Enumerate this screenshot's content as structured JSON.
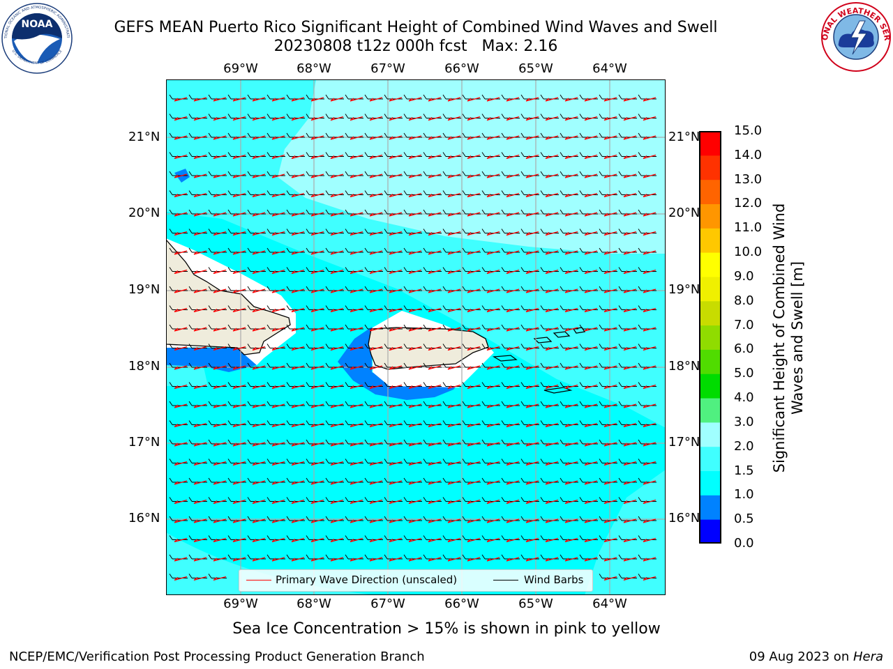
{
  "header": {
    "title_line1": "GEFS MEAN Puerto Rico Significant Height of Combined Wind Waves and Swell",
    "title_line2": "20230808 t12z 000h fcst   Max: 2.16"
  },
  "logos": {
    "noaa": {
      "text": "NOAA",
      "ring_text": "NATIONAL OCEANIC AND ATMOSPHERIC ADMINISTRATION",
      "ring_text_bottom": "U.S. DEPARTMENT OF COMMERCE"
    },
    "nws": {
      "ring_text": "NATIONAL WEATHER SERVICE"
    }
  },
  "map": {
    "lon_labels": [
      "69°W",
      "68°W",
      "67°W",
      "66°W",
      "65°W",
      "64°W"
    ],
    "lat_labels": [
      "21°N",
      "20°N",
      "19°N",
      "18°N",
      "17°N",
      "16°N"
    ],
    "legend": {
      "wave_label": "Primary Wave Direction (unscaled)",
      "barb_label": "Wind Barbs",
      "wave_color": "#ff0000",
      "barb_color": "#000000"
    }
  },
  "colorbar": {
    "label": "Significant Height of Combined Wind Waves and Swell [m]",
    "ticks": [
      "0.0",
      "0.5",
      "1.0",
      "1.5",
      "2.0",
      "3.0",
      "4.0",
      "5.0",
      "6.0",
      "7.0",
      "8.0",
      "9.0",
      "10.0",
      "11.0",
      "12.0",
      "13.0",
      "14.0",
      "15.0"
    ],
    "colors": [
      "#0000ff",
      "#0082ff",
      "#00ffff",
      "#40ffff",
      "#a0ffff",
      "#50f080",
      "#00dc00",
      "#50dc00",
      "#90dc00",
      "#c8dc00",
      "#f0f000",
      "#ffff00",
      "#ffc800",
      "#ff9600",
      "#ff6400",
      "#ff3200",
      "#ff0000"
    ]
  },
  "chart_data": {
    "type": "heatmap",
    "variable": "Significant Height of Combined Wind Waves and Swell",
    "units": "m",
    "max": 2.16,
    "lon_range": [
      -70.0,
      -63.25
    ],
    "lat_range": [
      15.0,
      21.75
    ],
    "levels": [
      0.0,
      0.5,
      1.0,
      1.5,
      2.0,
      3.0,
      4.0,
      5.0,
      6.0,
      7.0,
      8.0,
      9.0,
      10.0,
      11.0,
      12.0,
      13.0,
      14.0,
      15.0
    ],
    "wind_direction": "easterly trade winds",
    "grid": true
  },
  "footer": {
    "subtitle": "Sea Ice Concentration > 15% is shown in pink to yellow",
    "left": "NCEP/EMC/Verification Post Processing Product Generation Branch",
    "right_date": "09 Aug 2023 on ",
    "right_host": "Hera"
  }
}
